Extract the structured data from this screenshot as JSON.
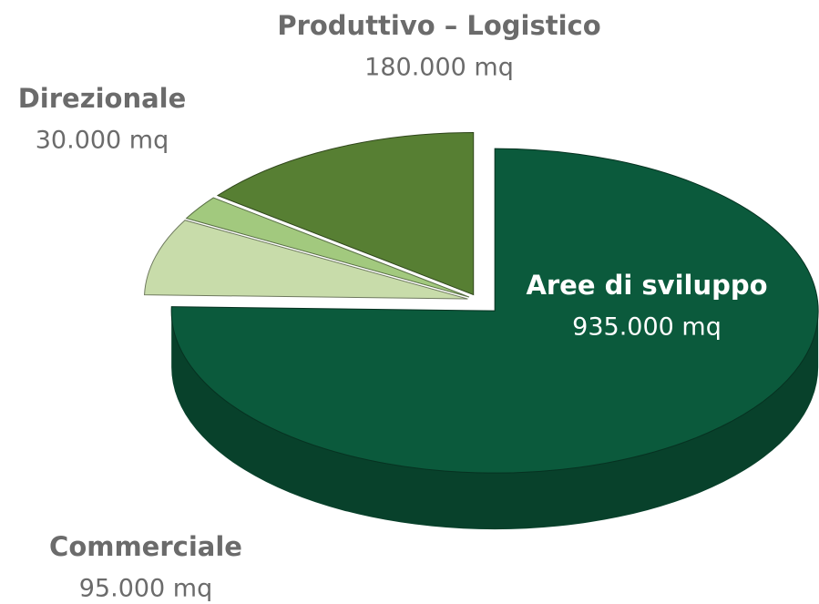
{
  "chart_data": {
    "type": "pie",
    "categories": [
      "Aree di sviluppo",
      "Commerciale",
      "Direzionale",
      "Produttivo – Logistico"
    ],
    "values": [
      935000,
      95000,
      30000,
      180000
    ],
    "value_labels": [
      "935.000 mq",
      "95.000 mq",
      "30.000 mq",
      "180.000 mq"
    ],
    "colors": [
      "#0b5a3c",
      "#c8dcaa",
      "#a2c97e",
      "#577f33"
    ]
  }
}
